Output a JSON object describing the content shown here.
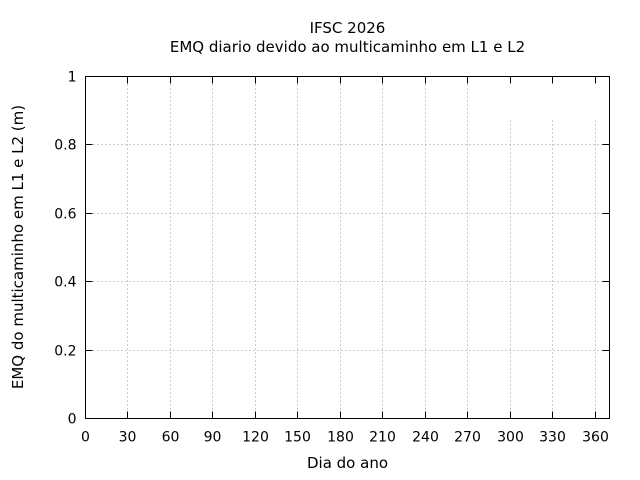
{
  "chart_data": {
    "type": "line",
    "title": "IFSC 2026",
    "subtitle": "EMQ diario devido ao multicaminho em L1 e L2",
    "xlabel": "Dia do ano",
    "ylabel": "EMQ do multicaminho em L1 e L2 (m)",
    "xlim": [
      0,
      370
    ],
    "ylim": [
      0,
      1
    ],
    "xticks": [
      0,
      30,
      60,
      90,
      120,
      150,
      180,
      210,
      240,
      270,
      300,
      330,
      360
    ],
    "ytick_values": [
      0,
      0.2,
      0.4,
      0.6,
      0.8,
      1
    ],
    "ytick_labels": [
      "0",
      "0.2",
      "0.4",
      "0.6",
      "0.8",
      "1"
    ],
    "grid": true,
    "legend": "none",
    "series": [],
    "partial_vertical_gridlines": {
      "x": [
        300,
        330,
        360
      ],
      "y_top": 0.87
    },
    "colors": {
      "axis": "#000000",
      "grid": "#9b9b9b",
      "text": "#000000",
      "background": "#ffffff"
    }
  }
}
